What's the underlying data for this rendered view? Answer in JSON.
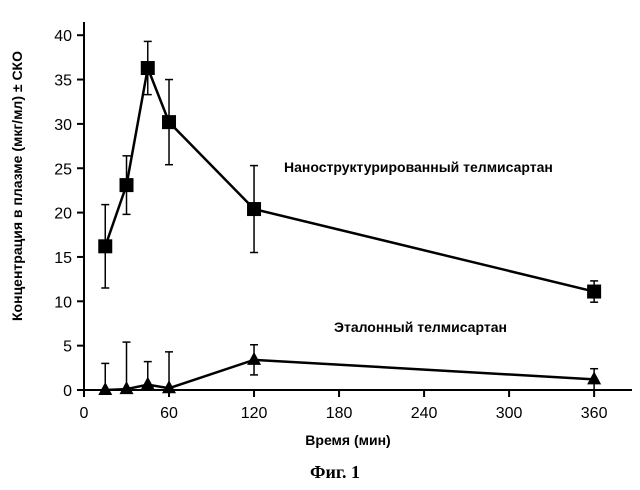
{
  "chart_data": {
    "type": "line",
    "title": "",
    "xlabel": "Время (мин)",
    "ylabel": "Концентрация в плазме (мкг/мл) ± СКО",
    "xlim": [
      0,
      380
    ],
    "ylim": [
      0,
      40
    ],
    "xticks": [
      0,
      60,
      120,
      180,
      240,
      300,
      360
    ],
    "yticks": [
      0,
      5,
      10,
      15,
      20,
      25,
      30,
      35,
      40
    ],
    "grid": false,
    "caption": "Фиг. 1",
    "series": [
      {
        "name": "Наноструктурированный телмисартан",
        "marker": "square",
        "x": [
          15,
          30,
          45,
          60,
          120,
          360
        ],
        "y": [
          16.2,
          23.1,
          36.3,
          30.2,
          20.4,
          11.1
        ],
        "err": [
          4.7,
          3.3,
          3.0,
          4.8,
          4.9,
          1.2
        ]
      },
      {
        "name": "Эталонный телмисартан",
        "marker": "triangle",
        "x": [
          15,
          30,
          45,
          60,
          120,
          360
        ],
        "y": [
          0.0,
          0.1,
          0.6,
          0.2,
          3.4,
          1.2
        ],
        "err": [
          3.0,
          5.3,
          2.6,
          4.1,
          1.7,
          1.2
        ]
      }
    ]
  }
}
